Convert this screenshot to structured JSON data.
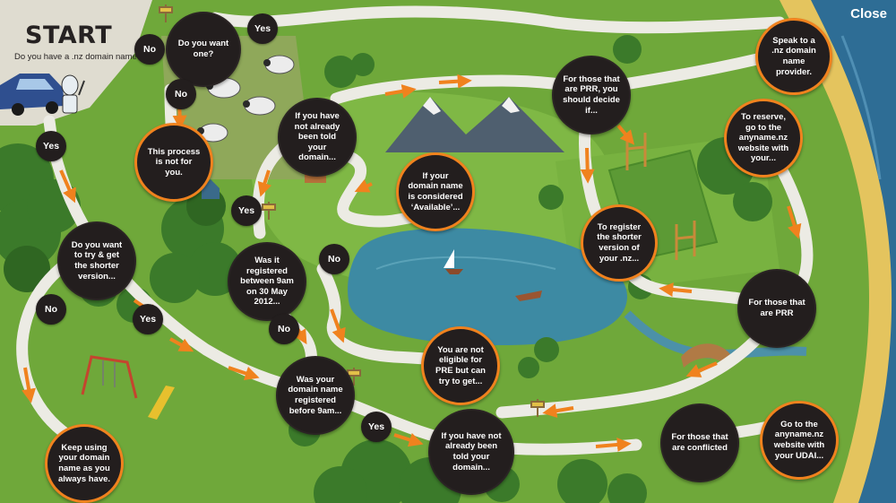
{
  "header": {
    "title": "START",
    "subtitle": "Do you have a .nz domain name?",
    "close_label": "Close"
  },
  "colors": {
    "grass": "#6fa83a",
    "path": "#ecebe4",
    "arrow": "#f0821e",
    "node": "#231e1e",
    "lake": "#3d8aa3",
    "sea": "#2e6d95",
    "sand": "#e4c45e"
  },
  "nodes": {
    "want_one": "Do you want one?",
    "not_for_you": "This process is not for you.",
    "want_shorter": "Do you want to try & get the shorter version...",
    "keep_using": "Keep using your domain name as you always have.",
    "not_told_top": "If you have not already been told your domain...",
    "available": "If your domain name is considered ‘Available’...",
    "registered_between": "Was it registered between 9am on 30 May 2012...",
    "registered_before": "Was your domain name registered before 9am...",
    "not_eligible": "You are not eligible for PRE but can try to get...",
    "not_told_bottom": "If you have not already been told your domain...",
    "prr_decide": "For those that are PRR, you should decide if...",
    "speak_provider": "Speak to a .nz domain name provider.",
    "reserve": "To reserve, go to the anyname.nz website with your...",
    "register_shorter": "To register the shorter version of your .nz...",
    "prr": "For those that are PRR",
    "conflicted": "For those that are conflicted",
    "go_anyname": "Go to the anyname.nz website with your UDAI..."
  },
  "answers": {
    "no": "No",
    "yes": "Yes"
  }
}
